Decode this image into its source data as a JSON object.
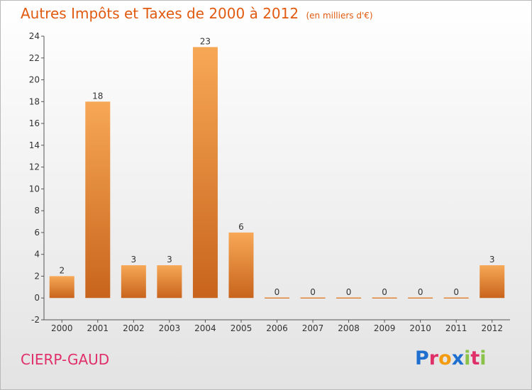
{
  "header": {
    "title": "Autres Impôts et Taxes de 2000 à 2012",
    "unit": "(en milliers d'€)"
  },
  "footer": {
    "commune": "CIERP-GAUD",
    "logo": [
      "P",
      "r",
      "o",
      "x",
      "i",
      "t",
      "i"
    ]
  },
  "colors": {
    "title": "#e05a10",
    "commune": "#e0306a",
    "bar_light": "#f7a856",
    "bar_dark": "#c8641c",
    "logo": [
      "#1e6fd0",
      "#e0306a",
      "#f39c12",
      "#1e6fd0",
      "#8bc34a",
      "#e0306a",
      "#8bc34a"
    ]
  },
  "chart_data": {
    "type": "bar",
    "categories": [
      "2000",
      "2001",
      "2002",
      "2003",
      "2004",
      "2005",
      "2006",
      "2007",
      "2008",
      "2009",
      "2010",
      "2011",
      "2012"
    ],
    "values": [
      2,
      18,
      3,
      3,
      23,
      6,
      0,
      0,
      0,
      0,
      0,
      0,
      3
    ],
    "ylim": [
      -2,
      24
    ],
    "yticks": [
      -2,
      0,
      2,
      4,
      6,
      8,
      10,
      12,
      14,
      16,
      18,
      20,
      22,
      24
    ],
    "grid": false,
    "data_labels": true
  }
}
